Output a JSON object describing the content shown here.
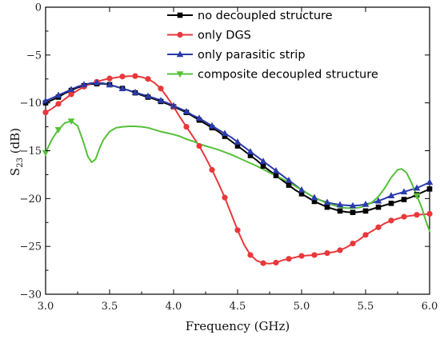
{
  "chart_data": {
    "type": "line",
    "xlabel": "Frequency (GHz)",
    "ylabel": "S23 (dB)",
    "ylabel_main": "S",
    "ylabel_sub": "23",
    "ylabel_unit": " (dB)",
    "xlim": [
      3.0,
      6.0
    ],
    "ylim": [
      -30,
      0
    ],
    "xticks": [
      3.0,
      3.5,
      4.0,
      4.5,
      5.0,
      5.5,
      6.0
    ],
    "xtick_labels": [
      "3.0",
      "3.5",
      "4.0",
      "4.5",
      "5.0",
      "5.5",
      "6.0"
    ],
    "yticks": [
      0,
      -5,
      -10,
      -15,
      -20,
      -25,
      -30
    ],
    "ytick_labels": [
      "0",
      "−5",
      "−10",
      "−15",
      "−20",
      "−25",
      "−30"
    ],
    "legend_position": "top-right",
    "grid": false,
    "series": [
      {
        "name": "no decoupled structure",
        "color": "#000000",
        "marker": "square",
        "points": [
          [
            3.0,
            -10.0
          ],
          [
            3.05,
            -9.7
          ],
          [
            3.1,
            -9.4
          ],
          [
            3.15,
            -9.0
          ],
          [
            3.2,
            -8.7
          ],
          [
            3.25,
            -8.4
          ],
          [
            3.3,
            -8.2
          ],
          [
            3.35,
            -8.05
          ],
          [
            3.4,
            -8.0
          ],
          [
            3.45,
            -8.0
          ],
          [
            3.5,
            -8.1
          ],
          [
            3.55,
            -8.3
          ],
          [
            3.6,
            -8.5
          ],
          [
            3.65,
            -8.7
          ],
          [
            3.7,
            -8.95
          ],
          [
            3.75,
            -9.2
          ],
          [
            3.8,
            -9.4
          ],
          [
            3.85,
            -9.6
          ],
          [
            3.9,
            -9.85
          ],
          [
            3.95,
            -10.1
          ],
          [
            4.0,
            -10.4
          ],
          [
            4.05,
            -10.7
          ],
          [
            4.1,
            -11.0
          ],
          [
            4.15,
            -11.4
          ],
          [
            4.2,
            -11.8
          ],
          [
            4.25,
            -12.2
          ],
          [
            4.3,
            -12.6
          ],
          [
            4.35,
            -13.0
          ],
          [
            4.4,
            -13.5
          ],
          [
            4.45,
            -14.0
          ],
          [
            4.5,
            -14.5
          ],
          [
            4.55,
            -15.0
          ],
          [
            4.6,
            -15.5
          ],
          [
            4.65,
            -16.0
          ],
          [
            4.7,
            -16.6
          ],
          [
            4.75,
            -17.1
          ],
          [
            4.8,
            -17.6
          ],
          [
            4.85,
            -18.1
          ],
          [
            4.9,
            -18.6
          ],
          [
            4.95,
            -19.1
          ],
          [
            5.0,
            -19.5
          ],
          [
            5.05,
            -19.9
          ],
          [
            5.1,
            -20.3
          ],
          [
            5.15,
            -20.6
          ],
          [
            5.2,
            -20.9
          ],
          [
            5.25,
            -21.1
          ],
          [
            5.3,
            -21.3
          ],
          [
            5.35,
            -21.4
          ],
          [
            5.4,
            -21.45
          ],
          [
            5.45,
            -21.4
          ],
          [
            5.5,
            -21.3
          ],
          [
            5.55,
            -21.1
          ],
          [
            5.6,
            -20.9
          ],
          [
            5.65,
            -20.7
          ],
          [
            5.7,
            -20.5
          ],
          [
            5.75,
            -20.3
          ],
          [
            5.8,
            -20.1
          ],
          [
            5.85,
            -19.9
          ],
          [
            5.9,
            -19.6
          ],
          [
            5.95,
            -19.3
          ],
          [
            6.0,
            -19.0
          ]
        ]
      },
      {
        "name": "only DGS",
        "color": "#e8383b",
        "marker": "circle",
        "points": [
          [
            3.0,
            -11.0
          ],
          [
            3.05,
            -10.6
          ],
          [
            3.1,
            -10.1
          ],
          [
            3.15,
            -9.6
          ],
          [
            3.2,
            -9.1
          ],
          [
            3.25,
            -8.7
          ],
          [
            3.3,
            -8.3
          ],
          [
            3.35,
            -8.0
          ],
          [
            3.4,
            -7.8
          ],
          [
            3.45,
            -7.6
          ],
          [
            3.5,
            -7.45
          ],
          [
            3.55,
            -7.35
          ],
          [
            3.6,
            -7.25
          ],
          [
            3.65,
            -7.2
          ],
          [
            3.7,
            -7.2
          ],
          [
            3.75,
            -7.3
          ],
          [
            3.8,
            -7.5
          ],
          [
            3.85,
            -7.9
          ],
          [
            3.9,
            -8.5
          ],
          [
            3.95,
            -9.4
          ],
          [
            4.0,
            -10.4
          ],
          [
            4.05,
            -11.5
          ],
          [
            4.1,
            -12.5
          ],
          [
            4.15,
            -13.5
          ],
          [
            4.2,
            -14.5
          ],
          [
            4.25,
            -15.7
          ],
          [
            4.3,
            -17.0
          ],
          [
            4.35,
            -18.4
          ],
          [
            4.4,
            -19.9
          ],
          [
            4.45,
            -21.6
          ],
          [
            4.5,
            -23.3
          ],
          [
            4.55,
            -24.8
          ],
          [
            4.6,
            -25.9
          ],
          [
            4.65,
            -26.5
          ],
          [
            4.7,
            -26.75
          ],
          [
            4.75,
            -26.8
          ],
          [
            4.8,
            -26.7
          ],
          [
            4.85,
            -26.45
          ],
          [
            4.9,
            -26.3
          ],
          [
            4.95,
            -26.15
          ],
          [
            5.0,
            -26.0
          ],
          [
            5.05,
            -25.95
          ],
          [
            5.1,
            -25.9
          ],
          [
            5.15,
            -25.8
          ],
          [
            5.2,
            -25.7
          ],
          [
            5.25,
            -25.6
          ],
          [
            5.3,
            -25.4
          ],
          [
            5.35,
            -25.1
          ],
          [
            5.4,
            -24.7
          ],
          [
            5.45,
            -24.3
          ],
          [
            5.5,
            -23.8
          ],
          [
            5.55,
            -23.4
          ],
          [
            5.6,
            -23.0
          ],
          [
            5.65,
            -22.6
          ],
          [
            5.7,
            -22.3
          ],
          [
            5.75,
            -22.1
          ],
          [
            5.8,
            -21.9
          ],
          [
            5.85,
            -21.8
          ],
          [
            5.9,
            -21.7
          ],
          [
            5.95,
            -21.65
          ],
          [
            6.0,
            -21.6
          ]
        ]
      },
      {
        "name": "only parasitic strip",
        "color": "#2b3bab",
        "marker": "triangle-up",
        "points": [
          [
            3.0,
            -9.8
          ],
          [
            3.05,
            -9.5
          ],
          [
            3.1,
            -9.2
          ],
          [
            3.15,
            -8.9
          ],
          [
            3.2,
            -8.6
          ],
          [
            3.25,
            -8.3
          ],
          [
            3.3,
            -8.1
          ],
          [
            3.35,
            -7.95
          ],
          [
            3.4,
            -7.9
          ],
          [
            3.45,
            -7.95
          ],
          [
            3.5,
            -8.1
          ],
          [
            3.55,
            -8.3
          ],
          [
            3.6,
            -8.5
          ],
          [
            3.65,
            -8.7
          ],
          [
            3.7,
            -8.9
          ],
          [
            3.75,
            -9.1
          ],
          [
            3.8,
            -9.3
          ],
          [
            3.85,
            -9.5
          ],
          [
            3.9,
            -9.75
          ],
          [
            3.95,
            -10.0
          ],
          [
            4.0,
            -10.3
          ],
          [
            4.05,
            -10.6
          ],
          [
            4.1,
            -10.9
          ],
          [
            4.15,
            -11.3
          ],
          [
            4.2,
            -11.6
          ],
          [
            4.25,
            -12.0
          ],
          [
            4.3,
            -12.4
          ],
          [
            4.35,
            -12.8
          ],
          [
            4.4,
            -13.2
          ],
          [
            4.45,
            -13.6
          ],
          [
            4.5,
            -14.1
          ],
          [
            4.55,
            -14.6
          ],
          [
            4.6,
            -15.1
          ],
          [
            4.65,
            -15.6
          ],
          [
            4.7,
            -16.1
          ],
          [
            4.75,
            -16.6
          ],
          [
            4.8,
            -17.1
          ],
          [
            4.85,
            -17.6
          ],
          [
            4.9,
            -18.1
          ],
          [
            4.95,
            -18.6
          ],
          [
            5.0,
            -19.1
          ],
          [
            5.05,
            -19.5
          ],
          [
            5.1,
            -19.9
          ],
          [
            5.15,
            -20.2
          ],
          [
            5.2,
            -20.4
          ],
          [
            5.25,
            -20.55
          ],
          [
            5.3,
            -20.65
          ],
          [
            5.35,
            -20.7
          ],
          [
            5.4,
            -20.75
          ],
          [
            5.45,
            -20.7
          ],
          [
            5.5,
            -20.6
          ],
          [
            5.55,
            -20.45
          ],
          [
            5.6,
            -20.25
          ],
          [
            5.65,
            -20.0
          ],
          [
            5.7,
            -19.7
          ],
          [
            5.75,
            -19.5
          ],
          [
            5.8,
            -19.3
          ],
          [
            5.85,
            -19.1
          ],
          [
            5.9,
            -18.9
          ],
          [
            5.95,
            -18.6
          ],
          [
            6.0,
            -18.3
          ]
        ]
      },
      {
        "name": "composite decoupled structure",
        "color": "#55c038",
        "marker": "triangle-down",
        "points": [
          [
            3.0,
            -15.2
          ],
          [
            3.05,
            -13.8
          ],
          [
            3.1,
            -12.8
          ],
          [
            3.15,
            -12.1
          ],
          [
            3.2,
            -11.9
          ],
          [
            3.25,
            -12.4
          ],
          [
            3.28,
            -13.5
          ],
          [
            3.3,
            -14.3
          ],
          [
            3.33,
            -15.6
          ],
          [
            3.36,
            -16.2
          ],
          [
            3.39,
            -15.9
          ],
          [
            3.42,
            -14.8
          ],
          [
            3.45,
            -13.9
          ],
          [
            3.5,
            -13.0
          ],
          [
            3.55,
            -12.6
          ],
          [
            3.6,
            -12.5
          ],
          [
            3.65,
            -12.45
          ],
          [
            3.7,
            -12.45
          ],
          [
            3.75,
            -12.5
          ],
          [
            3.8,
            -12.6
          ],
          [
            3.85,
            -12.8
          ],
          [
            3.9,
            -13.0
          ],
          [
            3.95,
            -13.15
          ],
          [
            4.0,
            -13.3
          ],
          [
            4.05,
            -13.5
          ],
          [
            4.1,
            -13.8
          ],
          [
            4.15,
            -14.0
          ],
          [
            4.2,
            -14.3
          ],
          [
            4.25,
            -14.5
          ],
          [
            4.3,
            -14.7
          ],
          [
            4.35,
            -14.9
          ],
          [
            4.4,
            -15.15
          ],
          [
            4.45,
            -15.4
          ],
          [
            4.5,
            -15.7
          ],
          [
            4.55,
            -16.0
          ],
          [
            4.6,
            -16.3
          ],
          [
            4.65,
            -16.6
          ],
          [
            4.7,
            -16.95
          ],
          [
            4.75,
            -17.3
          ],
          [
            4.8,
            -17.6
          ],
          [
            4.85,
            -17.95
          ],
          [
            4.9,
            -18.3
          ],
          [
            4.95,
            -18.7
          ],
          [
            5.0,
            -19.1
          ],
          [
            5.05,
            -19.5
          ],
          [
            5.1,
            -19.9
          ],
          [
            5.15,
            -20.2
          ],
          [
            5.2,
            -20.5
          ],
          [
            5.25,
            -20.7
          ],
          [
            5.3,
            -20.9
          ],
          [
            5.35,
            -21.0
          ],
          [
            5.4,
            -21.0
          ],
          [
            5.45,
            -20.95
          ],
          [
            5.5,
            -20.75
          ],
          [
            5.55,
            -20.4
          ],
          [
            5.6,
            -19.8
          ],
          [
            5.65,
            -18.9
          ],
          [
            5.7,
            -17.8
          ],
          [
            5.75,
            -17.0
          ],
          [
            5.78,
            -16.9
          ],
          [
            5.82,
            -17.3
          ],
          [
            5.86,
            -18.4
          ],
          [
            5.9,
            -19.7
          ],
          [
            5.94,
            -21.0
          ],
          [
            5.97,
            -22.3
          ],
          [
            6.0,
            -23.4
          ]
        ]
      }
    ]
  }
}
